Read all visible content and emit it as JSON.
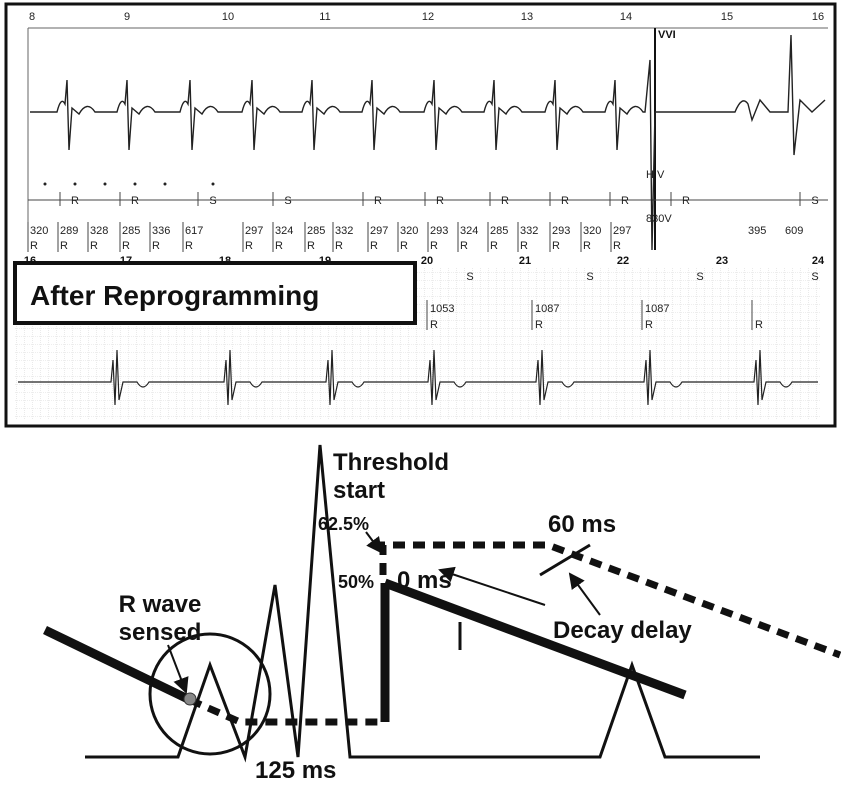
{
  "strip_top": {
    "time_labels_top": [
      8,
      9,
      10,
      11,
      12,
      13,
      14,
      15,
      16
    ],
    "mode": "VVI",
    "markers": [
      "R",
      "R",
      "S",
      "S",
      "R",
      "R",
      "R",
      "R",
      "R",
      "R",
      "H V",
      "S"
    ],
    "intervals": [
      {
        "value": 320,
        "marker": "R"
      },
      {
        "value": 289,
        "marker": "R"
      },
      {
        "value": 328,
        "marker": "R"
      },
      {
        "value": 285,
        "marker": "R"
      },
      {
        "value": 336,
        "marker": "R"
      },
      {
        "value": 617,
        "marker": "R"
      },
      {
        "value": 297,
        "marker": "R"
      },
      {
        "value": 324,
        "marker": "R"
      },
      {
        "value": 285,
        "marker": "R"
      },
      {
        "value": 332,
        "marker": "R"
      },
      {
        "value": 297,
        "marker": "R"
      },
      {
        "value": 320,
        "marker": "R"
      },
      {
        "value": 293,
        "marker": "R"
      },
      {
        "value": 324,
        "marker": "R"
      },
      {
        "value": 285,
        "marker": "R"
      },
      {
        "value": 332,
        "marker": "R"
      },
      {
        "value": 293,
        "marker": "R"
      },
      {
        "value": 320,
        "marker": "R"
      },
      {
        "value": 297,
        "marker": "R"
      }
    ],
    "pause_label": "830V",
    "late_intervals": [
      395,
      609
    ],
    "time_labels_bottom": [
      16,
      17,
      18,
      19,
      20,
      21,
      22,
      23,
      24
    ]
  },
  "strip_bottom": {
    "title": "After Reprogramming",
    "markers": [
      "S",
      "S",
      "S",
      "S"
    ],
    "intervals": [
      {
        "value": 1053,
        "marker": "R"
      },
      {
        "value": 1087,
        "marker": "R"
      },
      {
        "value": 1087,
        "marker": "R"
      },
      {
        "value": null,
        "marker": "R"
      }
    ]
  },
  "diagram": {
    "threshold_label": [
      "Threshold",
      "start"
    ],
    "pct_high": "62.5%",
    "pct_low": "50%",
    "delay_60": "60 ms",
    "delay_0": "0 ms",
    "r_wave_label": [
      "R wave",
      "sensed"
    ],
    "decay_label": "Decay delay",
    "blank_label": "125 ms"
  }
}
